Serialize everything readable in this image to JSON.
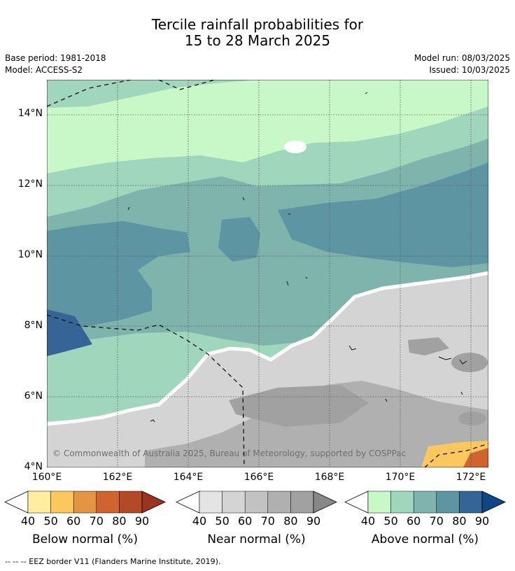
{
  "title_line1": "Tercile rainfall probabilities for",
  "title_line2": "15 to 28 March 2025",
  "base_period": "Base period: 1981-2018",
  "model": "Model: ACCESS-S2",
  "model_run": "Model run: 08/03/2025",
  "issued": "Issued: 10/03/2025",
  "copyright": "© Commonwealth of Australia 2025, Bureau of Meteorology, supported by COSPPac",
  "lat_labels": [
    "14°N",
    "12°N",
    "10°N",
    "8°N",
    "6°N",
    "4°N"
  ],
  "lon_labels": [
    "160°E",
    "162°E",
    "164°E",
    "166°E",
    "168°E",
    "170°E",
    "172°E"
  ],
  "legends": [
    {
      "title": "Below normal (%)",
      "ticks": [
        "40",
        "50",
        "60",
        "70",
        "80",
        "90"
      ],
      "colors": [
        "#ffeea0",
        "#fcc75e",
        "#e39544",
        "#cf6430",
        "#b24a27",
        "#9a3420"
      ]
    },
    {
      "title": "Near normal (%)",
      "ticks": [
        "40",
        "50",
        "60",
        "70",
        "80",
        "90"
      ],
      "colors": [
        "#e4e4e4",
        "#d4d4d4",
        "#c2c2c2",
        "#b0b0b0",
        "#a1a1a1",
        "#888888"
      ]
    },
    {
      "title": "Above normal (%)",
      "ticks": [
        "40",
        "50",
        "60",
        "70",
        "80",
        "90"
      ],
      "colors": [
        "#c8f8c8",
        "#a0d6bc",
        "#7fb4ac",
        "#5e95a2",
        "#356596",
        "#0e4784"
      ]
    }
  ],
  "footnote": "-- -- -- EEZ border V11 (Flanders Marine Institute, 2019)."
}
